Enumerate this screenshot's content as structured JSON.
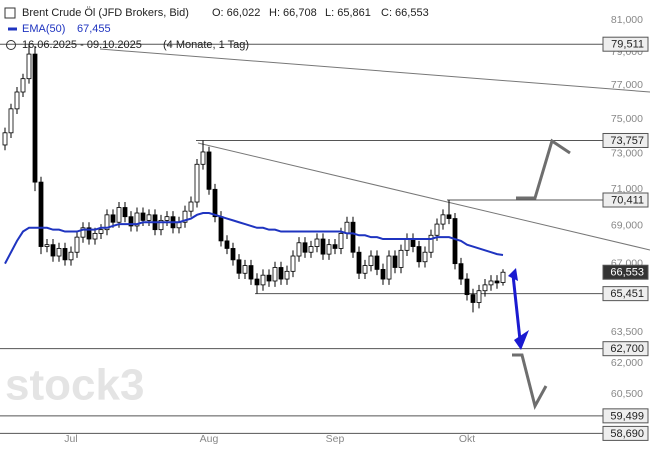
{
  "chart_data": {
    "type": "candlestick",
    "title": "Brent Crude Öl (JFD Brokers, Bid)",
    "ohlc_labels": [
      "O: 66,022",
      "H: 66,708",
      "L: 65,861",
      "C: 66,553"
    ],
    "range": "16.06.2025 - 09.10.2025",
    "range_note": "(4 Monate, 1 Tag)",
    "watermark": "stock3",
    "log_scale": true,
    "ylim": [
      58800,
      82300
    ],
    "yticks": [
      {
        "value": 81000,
        "label": "81,000"
      },
      {
        "value": 79000,
        "label": "79,000"
      },
      {
        "value": 77000,
        "label": "77,000"
      },
      {
        "value": 75000,
        "label": "75,000"
      },
      {
        "value": 73000,
        "label": "73,000"
      },
      {
        "value": 71000,
        "label": "71,000"
      },
      {
        "value": 69000,
        "label": "69,000"
      },
      {
        "value": 67000,
        "label": "67,000"
      },
      {
        "value": 63500,
        "label": "63,500"
      },
      {
        "value": 62000,
        "label": "62,000"
      },
      {
        "value": 60500,
        "label": "60,500"
      }
    ],
    "x_labels": [
      "Jul",
      "Aug",
      "Sep",
      "Okt"
    ],
    "up_color": "#ffffff",
    "down_color": "#000000",
    "open": [
      73500,
      74200,
      75600,
      76600,
      77400,
      78900,
      71400,
      67900,
      68000,
      67400,
      67800,
      67200,
      67600,
      68400,
      68900,
      68300,
      68600,
      68800,
      69600,
      69200,
      70000,
      69500,
      69000,
      69700,
      69300,
      69600,
      68800,
      69300,
      69500,
      68900,
      69200,
      69800,
      70300,
      72400,
      73100,
      71000,
      69500,
      68200,
      67800,
      67200,
      66500,
      66900,
      66200,
      65900,
      66400,
      66100,
      66800,
      66200,
      66600,
      67400,
      68100,
      67600,
      67900,
      68300,
      67500,
      68000,
      67800,
      68600,
      69200,
      67600,
      66500,
      66900,
      67400,
      66700,
      66200,
      67400,
      66800,
      67700,
      68300,
      67900,
      67100,
      67600,
      68500,
      69100,
      69600,
      69400,
      67000,
      66200,
      65400,
      65000,
      65600,
      65900,
      66100,
      66022
    ],
    "high": [
      74500,
      75900,
      76900,
      77700,
      79511,
      79400,
      71700,
      68300,
      68300,
      68100,
      68100,
      67900,
      68700,
      69200,
      69200,
      68900,
      69100,
      69900,
      69900,
      70300,
      70300,
      69800,
      70000,
      70000,
      69900,
      69900,
      69600,
      69800,
      69800,
      69500,
      70100,
      70600,
      72700,
      73757,
      73400,
      71300,
      69800,
      68500,
      68100,
      67500,
      67200,
      67200,
      66500,
      66700,
      66700,
      67100,
      67100,
      66900,
      67700,
      68400,
      68400,
      68200,
      68600,
      68600,
      68300,
      68300,
      68900,
      69500,
      69500,
      67900,
      67200,
      67700,
      67700,
      67000,
      67700,
      67700,
      68000,
      68600,
      68600,
      68200,
      67900,
      68800,
      69400,
      69900,
      70411,
      69700,
      67300,
      66500,
      65700,
      65900,
      66200,
      66400,
      66400,
      66708
    ],
    "low": [
      73200,
      73900,
      75300,
      76300,
      77100,
      70900,
      67500,
      67600,
      67100,
      67100,
      66900,
      66900,
      67300,
      68100,
      68000,
      68000,
      68300,
      68500,
      68900,
      68900,
      69200,
      68700,
      68700,
      69000,
      69000,
      68500,
      68500,
      69000,
      68600,
      68600,
      68900,
      69500,
      70000,
      72100,
      70700,
      69200,
      67900,
      67500,
      66900,
      66200,
      66200,
      65900,
      65451,
      65600,
      65800,
      65800,
      65900,
      65900,
      66300,
      67100,
      67300,
      67300,
      67600,
      67200,
      67200,
      67500,
      67500,
      68300,
      67300,
      66200,
      66200,
      66600,
      66400,
      65900,
      65900,
      66500,
      66500,
      67400,
      67600,
      66800,
      66800,
      67300,
      68200,
      68800,
      69100,
      66700,
      65900,
      65100,
      64500,
      64700,
      65300,
      65600,
      65700,
      65861
    ],
    "close": [
      74200,
      75600,
      76600,
      77400,
      78900,
      71400,
      67900,
      68000,
      67400,
      67800,
      67200,
      67600,
      68400,
      68900,
      68300,
      68600,
      68800,
      69600,
      69200,
      70000,
      69500,
      69000,
      69700,
      69300,
      69600,
      68800,
      69300,
      69500,
      68900,
      69200,
      69800,
      70300,
      72400,
      73100,
      71000,
      69500,
      68200,
      67800,
      67200,
      66500,
      66900,
      66200,
      65900,
      66400,
      66100,
      66800,
      66200,
      66600,
      67400,
      68100,
      67600,
      67900,
      68300,
      67500,
      68000,
      67800,
      68600,
      69200,
      67600,
      66500,
      66900,
      67400,
      66700,
      66200,
      67400,
      66800,
      67700,
      68300,
      67900,
      67100,
      67600,
      68500,
      69100,
      69600,
      69400,
      67000,
      66200,
      65400,
      65000,
      65600,
      65900,
      66100,
      66000,
      66553
    ],
    "ema": {
      "name": "EMA(50)",
      "color": "#1f34c0",
      "value_label": "67,455",
      "values": [
        67000,
        67600,
        68200,
        68700,
        68900,
        68900,
        68900,
        68900,
        68800,
        68800,
        68700,
        68700,
        68700,
        68800,
        68800,
        68800,
        68900,
        68900,
        69000,
        69100,
        69100,
        69100,
        69100,
        69200,
        69200,
        69200,
        69200,
        69200,
        69200,
        69200,
        69300,
        69400,
        69600,
        69700,
        69700,
        69600,
        69500,
        69400,
        69300,
        69200,
        69100,
        69000,
        68900,
        68900,
        68800,
        68800,
        68700,
        68700,
        68700,
        68700,
        68700,
        68700,
        68700,
        68700,
        68700,
        68700,
        68700,
        68600,
        68600,
        68500,
        68500,
        68400,
        68400,
        68300,
        68300,
        68300,
        68300,
        68300,
        68300,
        68300,
        68300,
        68300,
        68400,
        68400,
        68400,
        68300,
        68200,
        68000,
        67900,
        67800,
        67700,
        67600,
        67500,
        67455
      ]
    },
    "levels": [
      {
        "value": 79511,
        "label": "79,511"
      },
      {
        "value": 73757,
        "label": "73,757"
      },
      {
        "value": 70411,
        "label": "70,411"
      },
      {
        "value": 66553,
        "label": "66,553"
      },
      {
        "value": 65451,
        "label": "65,451"
      },
      {
        "value": 62700,
        "label": "62,700"
      },
      {
        "value": 59499,
        "label": "59,499"
      },
      {
        "value": 58690,
        "label": "58,690"
      }
    ]
  }
}
